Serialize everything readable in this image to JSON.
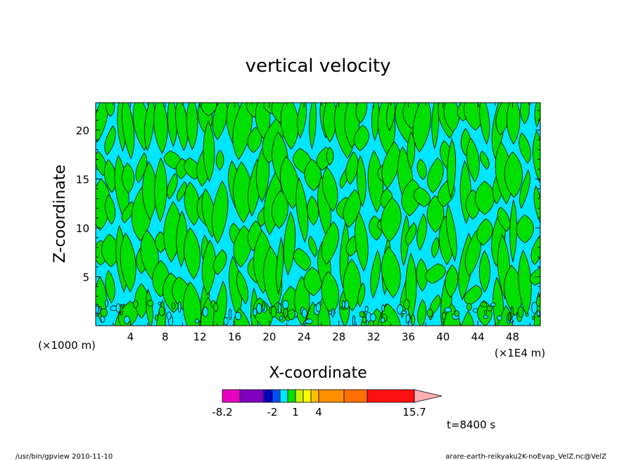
{
  "chart_data": {
    "type": "heatmap",
    "title": "vertical velocity",
    "xlabel": "X-coordinate",
    "ylabel": "Z-coordinate",
    "x_unit_left": "(×1000 m)",
    "x_unit_right": "(×1E4 m)",
    "xlim": [
      0,
      51.2
    ],
    "ylim": [
      0,
      22.8
    ],
    "x_ticks": [
      4,
      8,
      12,
      16,
      20,
      24,
      28,
      32,
      36,
      40,
      44,
      48
    ],
    "y_ticks": [
      5,
      10,
      15,
      20
    ],
    "fill_colors": {
      "dominant_negative": "#00e6ff",
      "dominant_positive": "#00e000",
      "contour_line": "#000000"
    },
    "colorbar": {
      "labels": [
        "-8.2",
        "-2",
        "1",
        "4",
        "15.7"
      ],
      "label_values": [
        -8.2,
        -2,
        1,
        4,
        15.7
      ],
      "bins": [
        {
          "color": "#e800c0"
        },
        {
          "color": "#8000c0"
        },
        {
          "color": "#0000c0"
        },
        {
          "color": "#0050ff"
        },
        {
          "color": "#00e6ff"
        },
        {
          "color": "#00e000"
        },
        {
          "color": "#c8f000"
        },
        {
          "color": "#ffff00"
        },
        {
          "color": "#ffc000"
        },
        {
          "color": "#ff9000"
        },
        {
          "color": "#ff7000"
        },
        {
          "color": "#ff1010"
        },
        {
          "color": "#ff8080"
        },
        {
          "color": "#ffb0b0"
        }
      ]
    },
    "time_label": "t=8400 s"
  },
  "footer": {
    "left": "/usr/bin/gpview  2010-11-10",
    "right": "arare-earth-reikyaku2K-noEvap_VelZ.nc@VelZ"
  }
}
